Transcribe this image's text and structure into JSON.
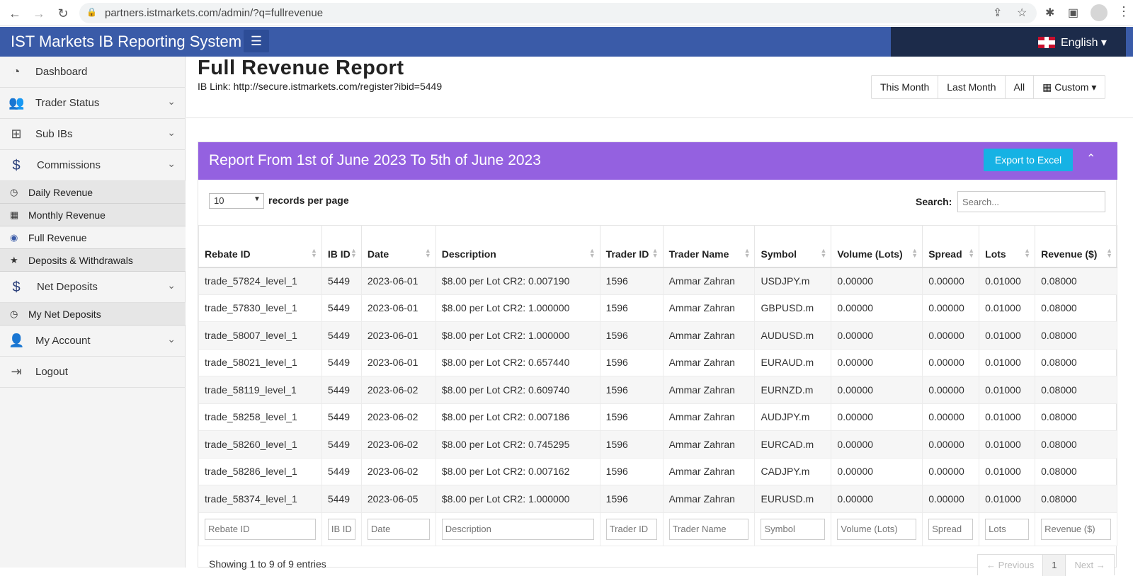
{
  "browser": {
    "url": "partners.istmarkets.com/admin/?q=fullrevenue"
  },
  "header": {
    "title": "IST Markets IB Reporting System",
    "language": "English"
  },
  "sidebar": {
    "items": [
      {
        "label": "Dashboard",
        "icon": "dashboard-icon"
      },
      {
        "label": "Trader Status",
        "icon": "users-icon"
      },
      {
        "label": "Sub IBs",
        "icon": "sitemap-icon"
      },
      {
        "label": "Commissions",
        "icon": "dollar-icon"
      },
      {
        "label": "Net Deposits",
        "icon": "dollar-icon"
      },
      {
        "label": "My Account",
        "icon": "user-icon"
      },
      {
        "label": "Logout",
        "icon": "logout-icon"
      }
    ],
    "commission_sub": [
      {
        "label": "Daily Revenue",
        "icon": "clock-icon"
      },
      {
        "label": "Monthly Revenue",
        "icon": "calendar-icon"
      },
      {
        "label": "Full Revenue",
        "icon": "eye-icon"
      },
      {
        "label": "Deposits & Withdrawals",
        "icon": "star-icon"
      }
    ],
    "net_sub": [
      {
        "label": "My Net Deposits",
        "icon": "clock-icon"
      }
    ]
  },
  "main": {
    "title": "Full Revenue Report",
    "ib_link": "IB Link: http://secure.istmarkets.com/register?ibid=5449",
    "ranges": [
      "This Month",
      "Last Month",
      "All",
      "Custom"
    ],
    "report_title": "Report From 1st of June 2023 To 5th of June 2023",
    "export_label": "Export to Excel",
    "records_per_page_value": "10",
    "records_per_page_label": "records per page",
    "search_label": "Search:",
    "search_placeholder": "Search...",
    "info": "Showing 1 to 9 of 9 entries",
    "pager": {
      "prev": "← Previous",
      "page": "1",
      "next": "Next →"
    }
  },
  "table": {
    "columns": [
      {
        "label": "Rebate ID",
        "filter": "Rebate ID"
      },
      {
        "label": "IB ID",
        "filter": "IB ID"
      },
      {
        "label": "Date",
        "filter": "Date"
      },
      {
        "label": "Description",
        "filter": "Description"
      },
      {
        "label": "Trader ID",
        "filter": "Trader ID"
      },
      {
        "label": "Trader Name",
        "filter": "Trader Name"
      },
      {
        "label": "Symbol",
        "filter": "Symbol"
      },
      {
        "label": "Volume (Lots)",
        "filter": "Volume (Lots)"
      },
      {
        "label": "Spread",
        "filter": "Spread"
      },
      {
        "label": "Lots",
        "filter": "Lots"
      },
      {
        "label": "Revenue ($)",
        "filter": "Revenue ($)"
      }
    ],
    "rows": [
      [
        "trade_57824_level_1",
        "5449",
        "2023-06-01",
        "$8.00 per Lot CR2: 0.007190",
        "1596",
        "Ammar Zahran",
        "USDJPY.m",
        "0.00000",
        "0.00000",
        "0.01000",
        "0.08000"
      ],
      [
        "trade_57830_level_1",
        "5449",
        "2023-06-01",
        "$8.00 per Lot CR2: 1.000000",
        "1596",
        "Ammar Zahran",
        "GBPUSD.m",
        "0.00000",
        "0.00000",
        "0.01000",
        "0.08000"
      ],
      [
        "trade_58007_level_1",
        "5449",
        "2023-06-01",
        "$8.00 per Lot CR2: 1.000000",
        "1596",
        "Ammar Zahran",
        "AUDUSD.m",
        "0.00000",
        "0.00000",
        "0.01000",
        "0.08000"
      ],
      [
        "trade_58021_level_1",
        "5449",
        "2023-06-01",
        "$8.00 per Lot CR2: 0.657440",
        "1596",
        "Ammar Zahran",
        "EURAUD.m",
        "0.00000",
        "0.00000",
        "0.01000",
        "0.08000"
      ],
      [
        "trade_58119_level_1",
        "5449",
        "2023-06-02",
        "$8.00 per Lot CR2: 0.609740",
        "1596",
        "Ammar Zahran",
        "EURNZD.m",
        "0.00000",
        "0.00000",
        "0.01000",
        "0.08000"
      ],
      [
        "trade_58258_level_1",
        "5449",
        "2023-06-02",
        "$8.00 per Lot CR2: 0.007186",
        "1596",
        "Ammar Zahran",
        "AUDJPY.m",
        "0.00000",
        "0.00000",
        "0.01000",
        "0.08000"
      ],
      [
        "trade_58260_level_1",
        "5449",
        "2023-06-02",
        "$8.00 per Lot CR2: 0.745295",
        "1596",
        "Ammar Zahran",
        "EURCAD.m",
        "0.00000",
        "0.00000",
        "0.01000",
        "0.08000"
      ],
      [
        "trade_58286_level_1",
        "5449",
        "2023-06-02",
        "$8.00 per Lot CR2: 0.007162",
        "1596",
        "Ammar Zahran",
        "CADJPY.m",
        "0.00000",
        "0.00000",
        "0.01000",
        "0.08000"
      ],
      [
        "trade_58374_level_1",
        "5449",
        "2023-06-05",
        "$8.00 per Lot CR2: 1.000000",
        "1596",
        "Ammar Zahran",
        "EURUSD.m",
        "0.00000",
        "0.00000",
        "0.01000",
        "0.08000"
      ]
    ]
  },
  "colors": {
    "header_bg": "#3a5ba8",
    "report_head_bg": "#9461e0",
    "export_bg": "#16b2e4"
  }
}
